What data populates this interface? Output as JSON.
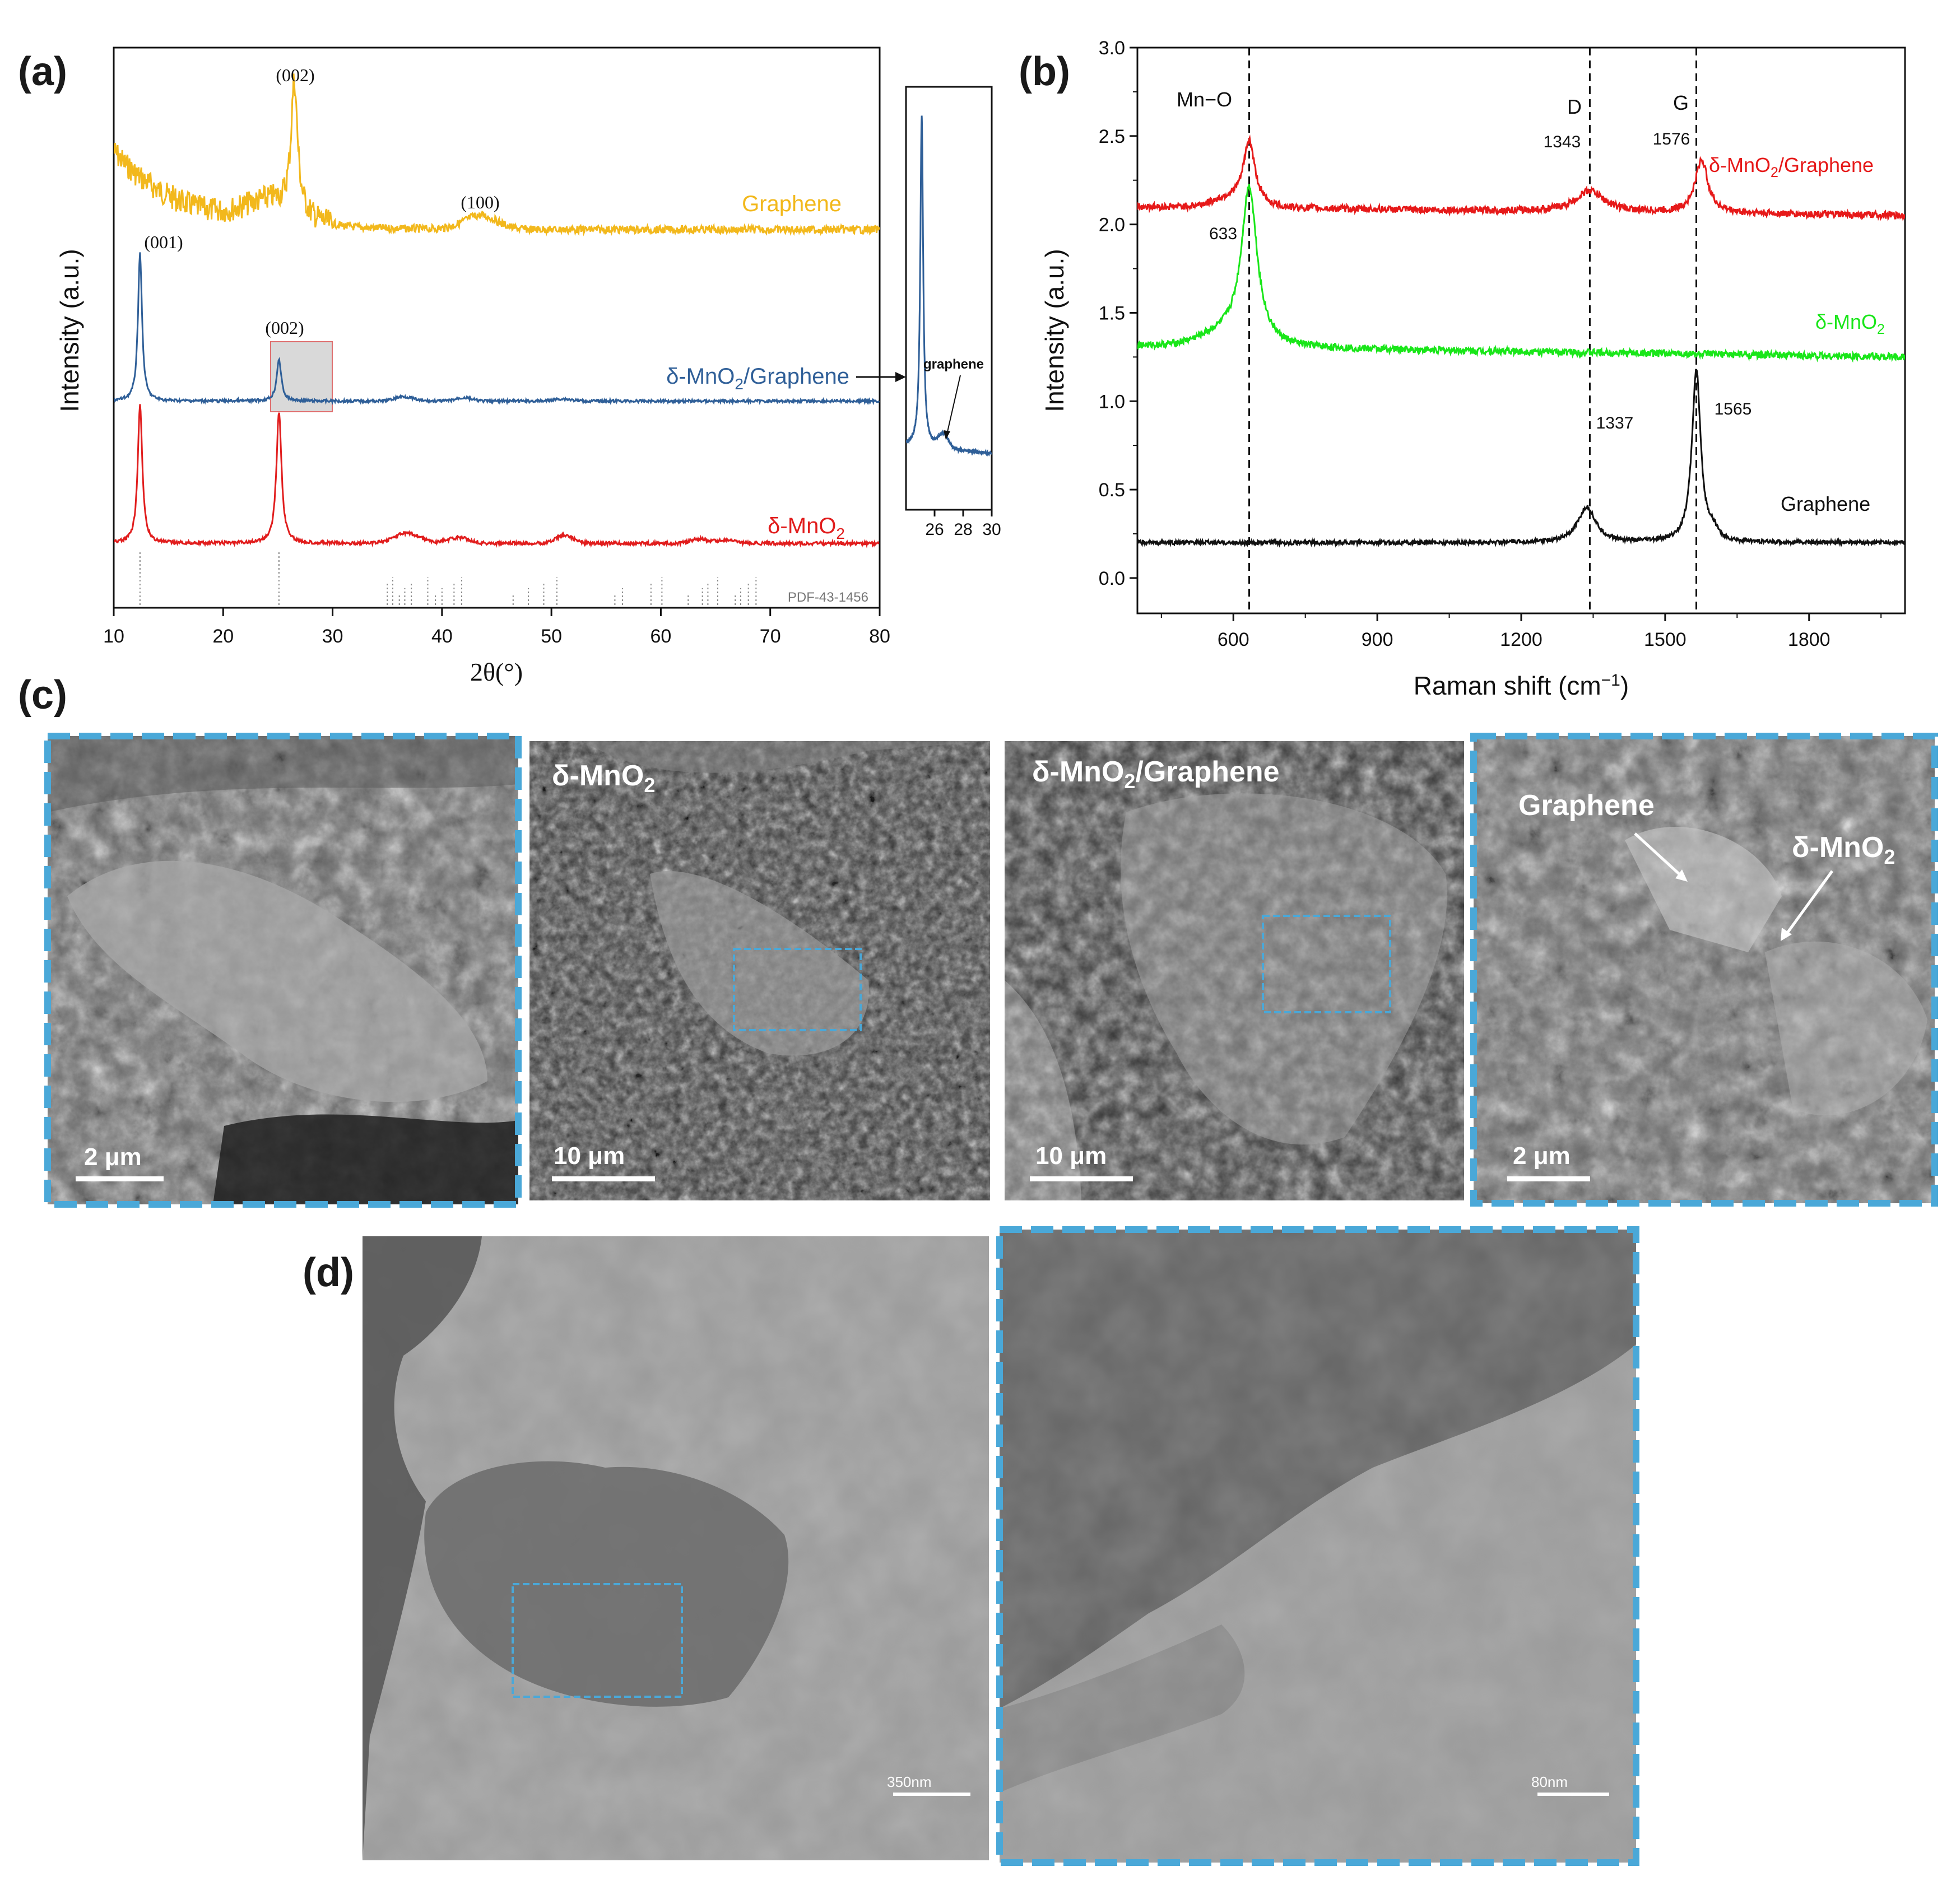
{
  "panels": {
    "a": {
      "label": "(a)",
      "chart_data": {
        "type": "line",
        "xlabel": "2θ(°)",
        "ylabel": "Intensity (a.u.)",
        "xlim": [
          10,
          80
        ],
        "xticks": [
          "10",
          "20",
          "30",
          "40",
          "50",
          "60",
          "70",
          "80"
        ],
        "series": [
          {
            "name": "Graphene",
            "color": "#f2b81c",
            "peaks": [
              {
                "x": 26.5,
                "label": "(002)"
              },
              {
                "x": 43.5,
                "label": "(100)"
              }
            ]
          },
          {
            "name": "δ-MnO2/Graphene",
            "color": "#2f5f98",
            "peaks": [
              {
                "x": 12.4,
                "label": "(001)"
              },
              {
                "x": 25.1,
                "label": "(002)"
              }
            ]
          },
          {
            "name": "δ-MnO2",
            "color": "#e11d1d",
            "peaks": [
              {
                "x": 12.4
              },
              {
                "x": 25.1
              }
            ]
          }
        ],
        "reference": "PDF-43-1456",
        "reference_lines": [
          12.4,
          25.1,
          35.0,
          35.5,
          36.1,
          36.6,
          37.2,
          38.7,
          39.4,
          40.0,
          41.1,
          41.8,
          46.5,
          47.9,
          49.3,
          50.5,
          55.8,
          56.5,
          59.1,
          60.1,
          62.5,
          63.8,
          64.3,
          65.2,
          66.8,
          67.3,
          68.0,
          68.7
        ],
        "inset": {
          "xlim": [
            24,
            30
          ],
          "xticks": [
            "26",
            "28",
            "30"
          ],
          "annotation": "graphene"
        }
      },
      "series_labels": {
        "graphene": "Graphene",
        "composite_base": "δ-MnO",
        "composite_sub": "2",
        "composite_rest": "/Graphene",
        "mno2_base": "δ-MnO",
        "mno2_sub": "2"
      }
    },
    "b": {
      "label": "(b)",
      "chart_data": {
        "type": "line",
        "xlabel": "Raman shift (cm",
        "xlabel_sup": "−1",
        "xlabel_end": ")",
        "ylabel": "Intensity (a.u.)",
        "xlim": [
          400,
          2000
        ],
        "ylim": [
          -0.2,
          3.0
        ],
        "xticks": [
          "600",
          "900",
          "1200",
          "1500",
          "1800"
        ],
        "yticks": [
          "0.0",
          "0.5",
          "1.0",
          "1.5",
          "2.0",
          "2.5",
          "3.0"
        ],
        "vlines": [
          {
            "x": 633,
            "label": "Mn−O"
          },
          {
            "x": 1343,
            "label": "D"
          },
          {
            "x": 1565,
            "label": "G"
          }
        ],
        "series": [
          {
            "name": "δ-MnO2/Graphene",
            "color": "#e61919",
            "baseline": 2.1,
            "peaks": [
              {
                "x": 633,
                "height": 0.35
              },
              {
                "x": 1343,
                "height": 0.12,
                "label": "1343"
              },
              {
                "x": 1576,
                "height": 0.3,
                "label": "1576"
              }
            ]
          },
          {
            "name": "δ-MnO2",
            "color": "#19e619",
            "baseline": 1.3,
            "peaks": [
              {
                "x": 633,
                "height": 0.88,
                "label": "633"
              }
            ]
          },
          {
            "name": "Graphene",
            "color": "#111111",
            "baseline": 0.2,
            "peaks": [
              {
                "x": 1337,
                "height": 0.2,
                "label": "1337"
              },
              {
                "x": 1565,
                "height": 0.98,
                "label": "1565"
              }
            ]
          }
        ]
      },
      "series_labels": {
        "composite_base": "δ-MnO",
        "composite_sub": "2",
        "composite_rest": "/Graphene",
        "mno2_base": "δ-MnO",
        "mno2_sub": "2",
        "graphene": "Graphene"
      }
    },
    "c": {
      "label": "(c)",
      "images": [
        {
          "scale": "2 μm"
        },
        {
          "title_base": "δ-MnO",
          "title_sub": "2",
          "scale": "10 μm"
        },
        {
          "title_base": "δ-MnO",
          "title_sub": "2",
          "title_rest": "/Graphene",
          "scale": "10 μm"
        },
        {
          "arrow_graphene": "Graphene",
          "arrow_mno2_base": "δ-MnO",
          "arrow_mno2_sub": "2",
          "scale": "2 μm"
        }
      ]
    },
    "d": {
      "label": "(d)",
      "images": [
        {
          "scale": "350nm"
        },
        {
          "scale": "80nm"
        }
      ]
    }
  },
  "colors": {
    "highlight_box": "#4aa8d8",
    "graphene_xrd": "#f2b81c",
    "composite_xrd": "#2f5f98",
    "mno2_xrd": "#e11d1d"
  }
}
